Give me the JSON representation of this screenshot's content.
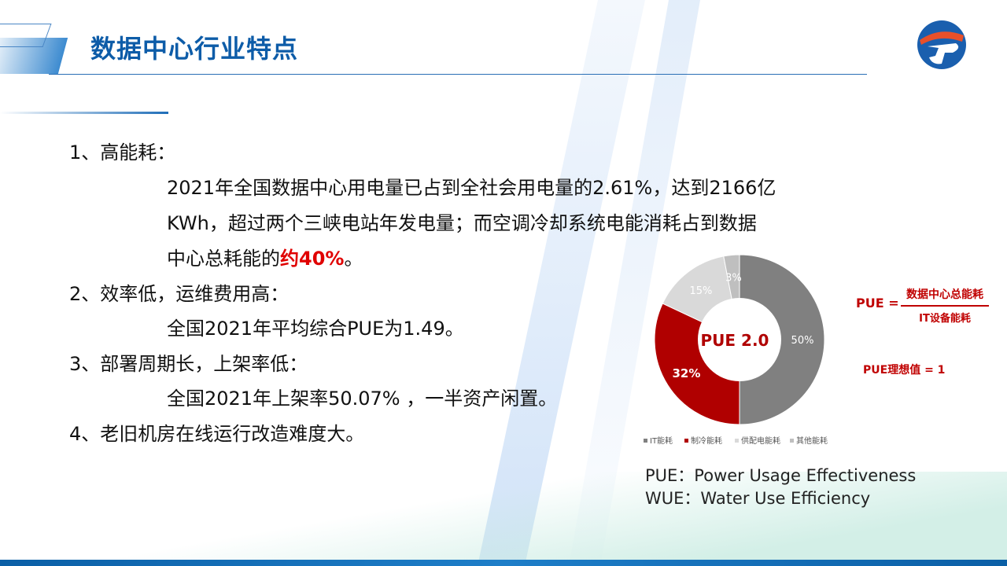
{
  "title": "数据中心行业特点",
  "points": [
    {
      "heading": "1、高能耗：",
      "lines": [
        "2021年全国数据中心用电量已占到全社会用电量的2.61%，达到2166亿",
        "KWh，超过两个三峡电站年发电量；而空调冷却系统电能消耗占到数据"
      ],
      "last_prefix": "中心总耗能的",
      "last_highlight": "约40%",
      "last_suffix": "。"
    },
    {
      "heading": "2、效率低，运维费用高：",
      "lines": [
        "全国2021年平均综合PUE为1.49。"
      ]
    },
    {
      "heading": "3、部署周期长，上架率低：",
      "lines": [
        "全国2021年上架率50.07% ，一半资产闲置。"
      ]
    },
    {
      "heading": "4、老旧机房在线运行改造难度大。"
    }
  ],
  "highlight_color": "#e00000",
  "chart_data": {
    "type": "pie",
    "donut": true,
    "center_label": "PUE 2.0",
    "categories": [
      "IT能耗",
      "制冷能耗",
      "供配电能耗",
      "其他能耗"
    ],
    "values": [
      50,
      32,
      15,
      3
    ],
    "labels": [
      "50%",
      "32%",
      "15%",
      "3%"
    ],
    "colors": [
      "#808080",
      "#b00000",
      "#d9d9d9",
      "#bfbfbf"
    ],
    "legend": "bottom"
  },
  "formula": {
    "lhs": "PUE =",
    "numerator": "数据中心总能耗",
    "denominator": "IT设备能耗",
    "ideal": "PUE理想值 = 1"
  },
  "definitions": [
    "PUE：Power Usage Effectiveness",
    "WUE：Water Use Efficiency"
  ]
}
